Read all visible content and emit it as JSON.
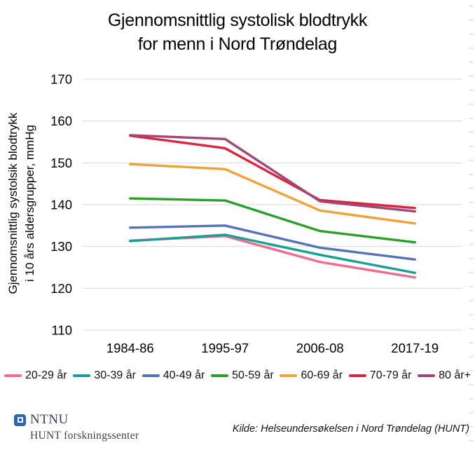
{
  "title": {
    "line1": "Gjennomsnittlig systolisk blodtrykk",
    "line2": "for menn i Nord Trøndelag"
  },
  "chart_data": {
    "type": "line",
    "title": "Gjennomsnittlig systolisk blodtrykk for menn i Nord Trøndelag",
    "categories": [
      "1984-86",
      "1995-97",
      "2006-08",
      "2017-19"
    ],
    "series": [
      {
        "name": "20-29 år",
        "color": "#ec6d90",
        "values": [
          131.4,
          132.5,
          126.3,
          122.6
        ]
      },
      {
        "name": "30-39 år",
        "color": "#1b9e93",
        "values": [
          131.3,
          132.8,
          128.0,
          123.7
        ]
      },
      {
        "name": "40-49 år",
        "color": "#5572bd",
        "values": [
          134.5,
          135.0,
          129.7,
          126.9
        ]
      },
      {
        "name": "50-59 år",
        "color": "#2aa02a",
        "values": [
          141.5,
          141.0,
          133.7,
          131.0
        ]
      },
      {
        "name": "60-69 år",
        "color": "#eda339",
        "values": [
          149.7,
          148.5,
          138.6,
          135.5
        ]
      },
      {
        "name": "70-79 år",
        "color": "#d8263f",
        "values": [
          156.5,
          153.5,
          141.1,
          139.2
        ]
      },
      {
        "name": "80 år+",
        "color": "#a04778",
        "values": [
          156.6,
          155.7,
          140.8,
          138.4
        ]
      }
    ],
    "xlabel": "",
    "ylabel_line1": "Gjennomsnittlig systolsik blodtrykk",
    "ylabel_line2": "i 10 års aldersgrupper, mmHg",
    "yticks": [
      110,
      120,
      130,
      140,
      150,
      160,
      170
    ],
    "ylim": [
      110,
      170
    ],
    "grid": true,
    "gridline_color": "#d9d9d9",
    "legend_position": "bottom"
  },
  "footer": {
    "logo_text": "NTNU",
    "logo_subtext": "HUNT forskningssenter",
    "logo_color": "#2b66b5",
    "source": "Kilde: Helseundersøkelsen i Nord Trøndelag (HUNT)"
  }
}
